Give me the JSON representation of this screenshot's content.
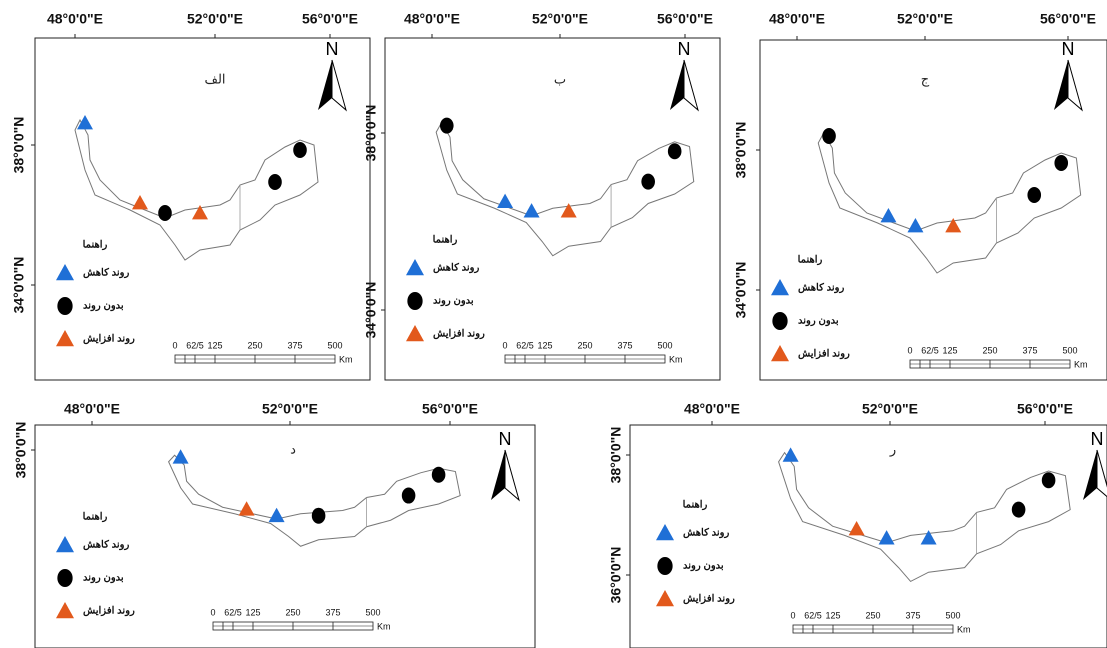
{
  "panels": [
    {
      "title": "الف",
      "lon_labels": [
        "48°0'0\"E",
        "52°0'0\"E",
        "56°0'0\"E"
      ],
      "lat_labels": [
        "38°0'0\"N",
        "34°0'0\"N"
      ],
      "north": "N",
      "legend": {
        "title": "راهنما",
        "items": [
          "روند کاهش",
          "بدون روند",
          "روند افزایش"
        ]
      },
      "scale": {
        "labels": [
          "0",
          "62/5",
          "125",
          "250",
          "375",
          "500"
        ],
        "unit": "Km"
      }
    },
    {
      "title": "ب",
      "lon_labels": [
        "48°0'0\"E",
        "52°0'0\"E",
        "56°0'0\"E"
      ],
      "lat_labels": [
        "38°0'0\"N",
        "34°0'0\"N"
      ],
      "north": "N",
      "legend": {
        "title": "راهنما",
        "items": [
          "روند کاهش",
          "بدون روند",
          "روند افزایش"
        ]
      },
      "scale": {
        "labels": [
          "0",
          "62/5",
          "125",
          "250",
          "375",
          "500"
        ],
        "unit": "Km"
      }
    },
    {
      "title": "ج",
      "lon_labels": [
        "48°0'0\"E",
        "52°0'0\"E",
        "56°0'0\"E"
      ],
      "lat_labels": [
        "38°0'0\"N",
        "34°0'0\"N"
      ],
      "north": "N",
      "legend": {
        "title": "راهنما",
        "items": [
          "روند کاهش",
          "بدون روند",
          "روند افزایش"
        ]
      },
      "scale": {
        "labels": [
          "0",
          "62/5",
          "125",
          "250",
          "375",
          "500"
        ],
        "unit": "Km"
      }
    },
    {
      "title": "د",
      "lon_labels": [
        "48°0'0\"E",
        "52°0'0\"E",
        "56°0'0\"E"
      ],
      "lat_labels": [
        "38°0'0\"N"
      ],
      "north": "N",
      "legend": {
        "title": "راهنما",
        "items": [
          "روند کاهش",
          "بدون روند",
          "روند افزایش"
        ]
      },
      "scale": {
        "labels": [
          "0",
          "62/5",
          "125",
          "250",
          "375",
          "500"
        ],
        "unit": "Km"
      }
    },
    {
      "title": "ر",
      "lon_labels": [
        "48°0'0\"E",
        "52°0'0\"E",
        "56°0'0\"E"
      ],
      "lat_labels": [
        "38°0'0\"N",
        "36°0'0\"N"
      ],
      "north": "N",
      "legend": {
        "title": "راهنما",
        "items": [
          "روند کاهش",
          "بدون روند",
          "روند افزایش"
        ]
      },
      "scale": {
        "labels": [
          "0",
          "62/5",
          "125",
          "250",
          "375",
          "500"
        ],
        "unit": "Km"
      }
    }
  ]
}
